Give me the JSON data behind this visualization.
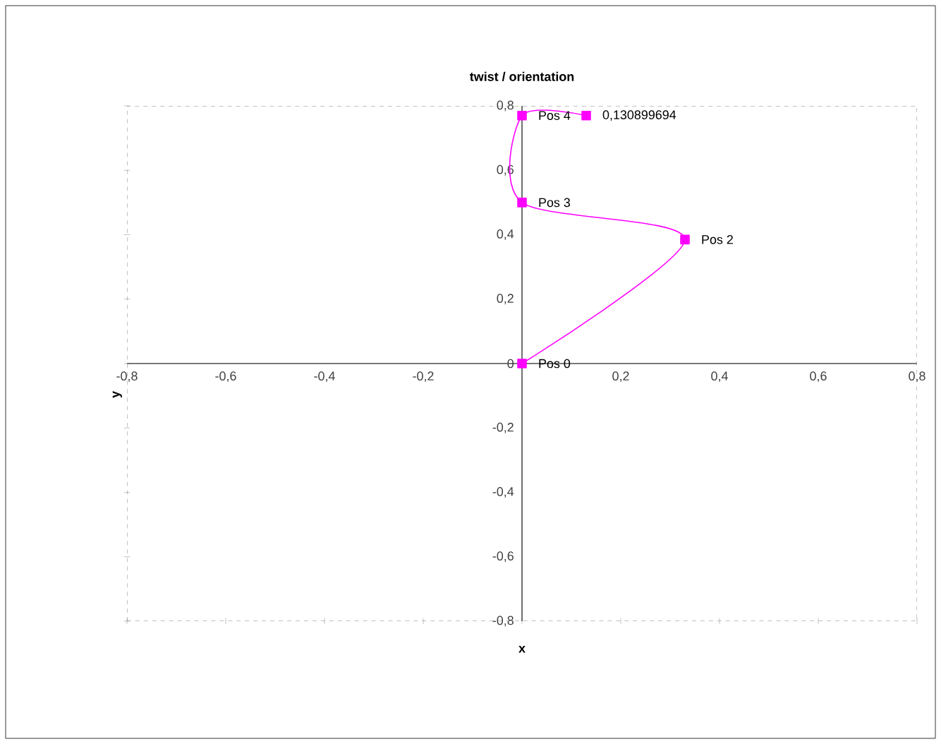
{
  "chart_data": {
    "type": "line",
    "title": "twist / orientation",
    "xlabel": "x",
    "ylabel": "y",
    "x": [
      0,
      0.33,
      0,
      0,
      0.13
    ],
    "series": [
      {
        "color": "#ff00ff",
        "values": [
          0,
          0.385,
          0.5,
          0.77,
          0.77
        ]
      }
    ],
    "marker": "square",
    "line_style": "solid",
    "grid": false,
    "xlim": [
      -0.8,
      0.8
    ],
    "ylim": [
      -0.8,
      0.8
    ],
    "xticks": [
      {
        "value": -0.8,
        "label": "-0,8"
      },
      {
        "value": -0.6,
        "label": "-0,6"
      },
      {
        "value": -0.4,
        "label": "-0,4"
      },
      {
        "value": -0.2,
        "label": "-0,2"
      },
      {
        "value": 0,
        "label": null
      },
      {
        "value": 0.2,
        "label": "0,2"
      },
      {
        "value": 0.4,
        "label": "0,4"
      },
      {
        "value": 0.6,
        "label": "0,6"
      },
      {
        "value": 0.8,
        "label": "0,8"
      }
    ],
    "yticks": [
      {
        "value": -0.8,
        "label": "-0,8"
      },
      {
        "value": -0.6,
        "label": "-0,6"
      },
      {
        "value": -0.4,
        "label": "-0,4"
      },
      {
        "value": -0.2,
        "label": "-0,2"
      },
      {
        "value": 0,
        "label": "0"
      },
      {
        "value": 0.2,
        "label": "0,2"
      },
      {
        "value": 0.4,
        "label": "0,4"
      },
      {
        "value": 0.6,
        "label": "0,6"
      },
      {
        "value": 0.8,
        "label": "0,8"
      }
    ],
    "annotations": [
      {
        "text": "Pos 0",
        "x": 0,
        "y": 0
      },
      {
        "text": "Pos 2",
        "x": 0.33,
        "y": 0.385
      },
      {
        "text": "Pos 3",
        "x": 0,
        "y": 0.5
      },
      {
        "text": "Pos 4",
        "x": 0,
        "y": 0.77
      },
      {
        "text": "0,130899694",
        "x": 0.13,
        "y": 0.77
      }
    ]
  }
}
